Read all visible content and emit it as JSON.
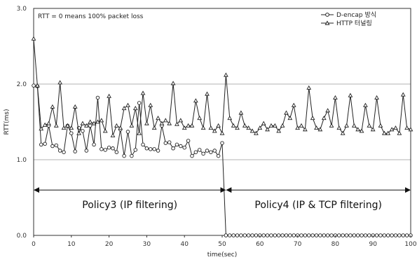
{
  "chart_data": {
    "type": "line",
    "title": "",
    "xlabel": "time(sec)",
    "ylabel": "RTT(ms)",
    "xlim": [
      0,
      100
    ],
    "ylim": [
      0,
      3
    ],
    "xticks": [
      "0",
      "10",
      "20",
      "30",
      "40",
      "50",
      "60",
      "70",
      "80",
      "90",
      "100"
    ],
    "yticks": [
      "0.0",
      "1.0",
      "2.0",
      "3.0"
    ],
    "grid": true,
    "legend_position": "top-right",
    "annotation": "RTT = 0 means 100% packet loss",
    "regions": [
      {
        "label": "Policy3 (IP filtering)",
        "x_start": 0,
        "x_end": 51
      },
      {
        "label": "Policy4 (IP & TCP filtering)",
        "x_start": 51,
        "x_end": 100
      }
    ],
    "series": [
      {
        "name": "D-encap 방식",
        "marker": "circle",
        "x": [
          0,
          1,
          2,
          3,
          4,
          5,
          6,
          7,
          8,
          9,
          10,
          11,
          12,
          13,
          14,
          15,
          16,
          17,
          18,
          19,
          20,
          21,
          22,
          23,
          24,
          25,
          26,
          27,
          28,
          29,
          30,
          31,
          32,
          33,
          34,
          35,
          36,
          37,
          38,
          39,
          40,
          41,
          42,
          43,
          44,
          45,
          46,
          47,
          48,
          49,
          50,
          51,
          52,
          53,
          54,
          55,
          56,
          57,
          58,
          59,
          60,
          61,
          62,
          63,
          64,
          65,
          66,
          67,
          68,
          69,
          70,
          71,
          72,
          73,
          74,
          75,
          76,
          77,
          78,
          79,
          80,
          81,
          82,
          83,
          84,
          85,
          86,
          87,
          88,
          89,
          90,
          91,
          92,
          93,
          94,
          95,
          96,
          97,
          98,
          99,
          100
        ],
        "y": [
          1.98,
          1.97,
          1.2,
          1.21,
          1.45,
          1.18,
          1.19,
          1.12,
          1.1,
          1.45,
          1.35,
          1.11,
          1.42,
          1.38,
          1.12,
          1.45,
          1.2,
          1.82,
          1.14,
          1.13,
          1.16,
          1.15,
          1.1,
          1.4,
          1.05,
          1.37,
          1.05,
          1.13,
          1.75,
          1.2,
          1.15,
          1.14,
          1.14,
          1.12,
          1.45,
          1.22,
          1.23,
          1.15,
          1.2,
          1.18,
          1.16,
          1.25,
          1.05,
          1.1,
          1.13,
          1.08,
          1.12,
          1.1,
          1.12,
          1.05,
          1.22,
          0,
          0,
          0,
          0,
          0,
          0,
          0,
          0,
          0,
          0,
          0,
          0,
          0,
          0,
          0,
          0,
          0,
          0,
          0,
          0,
          0,
          0,
          0,
          0,
          0,
          0,
          0,
          0,
          0,
          0,
          0,
          0,
          0,
          0,
          0,
          0,
          0,
          0,
          0,
          0,
          0,
          0,
          0,
          0,
          0,
          0,
          0,
          0,
          0,
          0
        ]
      },
      {
        "name": "HTTP 터널링",
        "marker": "triangle",
        "x": [
          0,
          1,
          2,
          3,
          4,
          5,
          6,
          7,
          8,
          9,
          10,
          11,
          12,
          13,
          14,
          15,
          16,
          17,
          18,
          19,
          20,
          21,
          22,
          23,
          24,
          25,
          26,
          27,
          28,
          29,
          30,
          31,
          32,
          33,
          34,
          35,
          36,
          37,
          38,
          39,
          40,
          41,
          42,
          43,
          44,
          45,
          46,
          47,
          48,
          49,
          50,
          51,
          52,
          53,
          54,
          55,
          56,
          57,
          58,
          59,
          60,
          61,
          62,
          63,
          64,
          65,
          66,
          67,
          68,
          69,
          70,
          71,
          72,
          73,
          74,
          75,
          76,
          77,
          78,
          79,
          80,
          81,
          82,
          83,
          84,
          85,
          86,
          87,
          88,
          89,
          90,
          91,
          92,
          93,
          94,
          95,
          96,
          97,
          98,
          99,
          100
        ],
        "y": [
          2.6,
          1.98,
          1.41,
          1.46,
          1.48,
          1.7,
          1.45,
          2.02,
          1.42,
          1.45,
          1.42,
          1.7,
          1.35,
          1.48,
          1.45,
          1.5,
          1.48,
          1.5,
          1.52,
          1.38,
          1.84,
          1.32,
          1.45,
          1.42,
          1.68,
          1.72,
          1.45,
          1.68,
          1.35,
          1.88,
          1.48,
          1.72,
          1.42,
          1.55,
          1.48,
          1.52,
          1.48,
          2.01,
          1.47,
          1.52,
          1.42,
          1.45,
          1.45,
          1.78,
          1.55,
          1.42,
          1.87,
          1.42,
          1.38,
          1.45,
          1.35,
          2.12,
          1.55,
          1.45,
          1.42,
          1.62,
          1.45,
          1.42,
          1.38,
          1.35,
          1.42,
          1.48,
          1.4,
          1.45,
          1.45,
          1.38,
          1.45,
          1.62,
          1.55,
          1.72,
          1.42,
          1.45,
          1.4,
          1.95,
          1.55,
          1.42,
          1.4,
          1.55,
          1.65,
          1.45,
          1.82,
          1.42,
          1.35,
          1.45,
          1.85,
          1.45,
          1.4,
          1.38,
          1.72,
          1.45,
          1.4,
          1.82,
          1.45,
          1.35,
          1.35,
          1.4,
          1.42,
          1.35,
          1.86,
          1.42,
          1.4
        ]
      }
    ]
  }
}
